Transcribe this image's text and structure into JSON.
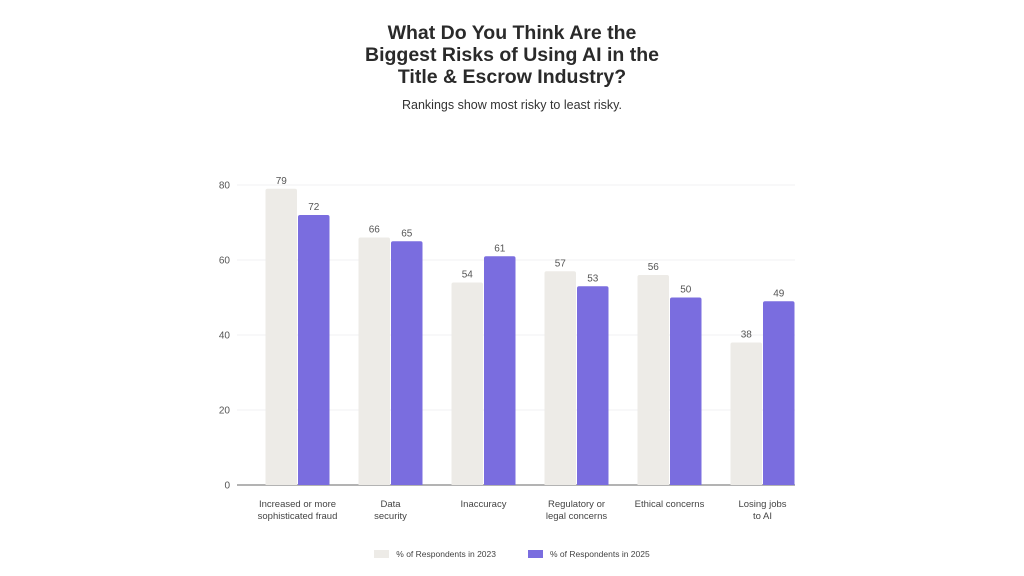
{
  "chart_data": {
    "type": "bar",
    "title": "What Do You Think Are the Biggest Risks of Using AI in the Title & Escrow Industry?",
    "title_lines": [
      "What Do You Think Are the",
      "Biggest Risks of Using AI in the",
      "Title & Escrow Industry?"
    ],
    "subtitle": "Rankings show most risky to least risky.",
    "xlabel": "",
    "ylabel": "",
    "ylim": [
      0,
      80
    ],
    "yticks": [
      0,
      20,
      40,
      60,
      80
    ],
    "grid": true,
    "legend_position": "bottom-center",
    "categories": [
      [
        "Increased or more",
        "sophisticated fraud"
      ],
      [
        "Data",
        "security"
      ],
      [
        "Inaccuracy"
      ],
      [
        "Regulatory or",
        "legal concerns"
      ],
      [
        "Ethical concerns"
      ],
      [
        "Losing jobs",
        "to AI"
      ]
    ],
    "series": [
      {
        "name": "% of Respondents in 2023",
        "color": "#edebe7",
        "values": [
          79,
          66,
          54,
          57,
          56,
          38
        ]
      },
      {
        "name": "% of Respondents in 2025",
        "color": "#7a6ddf",
        "values": [
          72,
          65,
          61,
          53,
          50,
          49
        ]
      }
    ]
  }
}
